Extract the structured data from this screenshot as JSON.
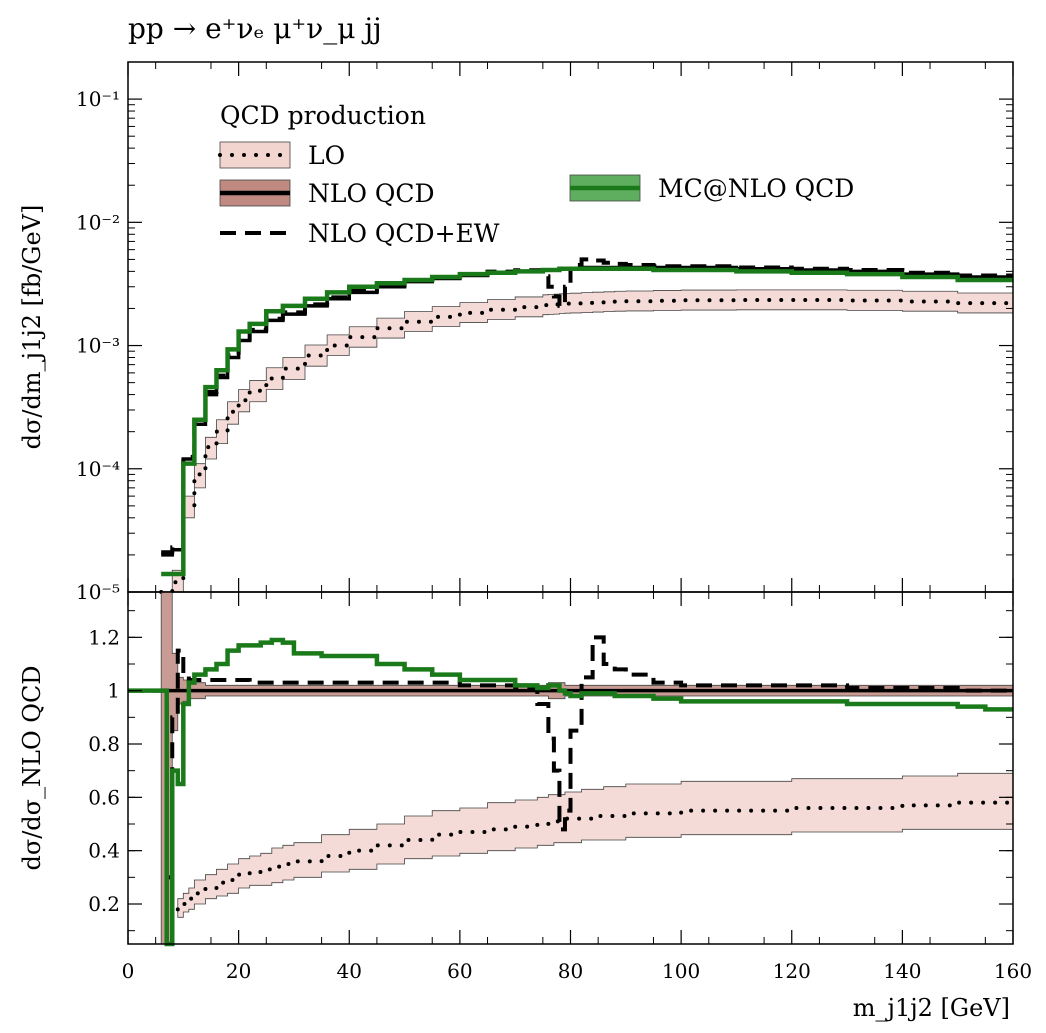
{
  "title": "pp → e⁺νₑ μ⁺ν_μ jj",
  "chart_data": [
    {
      "type": "line",
      "panel": "main",
      "ylabel": "dσ/dm_j1j2 [fb/GeV]",
      "yscale": "log",
      "xlim": [
        0,
        160
      ],
      "ylim": [
        1e-05,
        0.2
      ],
      "legend_title": "QCD production",
      "legend_position": "top-left",
      "yticks": [
        {
          "v": 1e-05,
          "label": "10⁻⁵"
        },
        {
          "v": 0.0001,
          "label": "10⁻⁴"
        },
        {
          "v": 0.001,
          "label": "10⁻³"
        },
        {
          "v": 0.01,
          "label": "10⁻²"
        },
        {
          "v": 0.1,
          "label": "10⁻¹"
        }
      ],
      "x": [
        6,
        8,
        10,
        12,
        14,
        16,
        18,
        20,
        22,
        25,
        28,
        32,
        36,
        40,
        45,
        50,
        55,
        60,
        65,
        70,
        75,
        76,
        77,
        78,
        79,
        80,
        82,
        84,
        86,
        88,
        90,
        95,
        100,
        110,
        120,
        130,
        140,
        150,
        160
      ],
      "series": [
        {
          "name": "LO",
          "style": "dotted",
          "color": "#000000",
          "band_color": "#f3d5d0",
          "values": [
            5e-06,
            1.2e-05,
            5e-05,
            9e-05,
            0.00015,
            0.0002,
            0.00029,
            0.00036,
            0.00043,
            0.00054,
            0.00065,
            0.00083,
            0.001,
            0.00117,
            0.00138,
            0.00156,
            0.00171,
            0.00184,
            0.00195,
            0.00205,
            0.00213,
            0.00215,
            0.00216,
            0.00218,
            0.00219,
            0.0022,
            0.00222,
            0.00224,
            0.00226,
            0.00228,
            0.00229,
            0.00231,
            0.00233,
            0.00234,
            0.00234,
            0.00232,
            0.00228,
            0.00221,
            0.0021
          ],
          "band_low": [
            4e-06,
            1e-05,
            4e-05,
            7e-05,
            0.00012,
            0.00016,
            0.00023,
            0.00029,
            0.00035,
            0.00044,
            0.00053,
            0.00068,
            0.00083,
            0.00097,
            0.00115,
            0.0013,
            0.00143,
            0.00154,
            0.00163,
            0.00171,
            0.00178,
            0.00179,
            0.0018,
            0.00182,
            0.00183,
            0.00184,
            0.00185,
            0.00187,
            0.00189,
            0.0019,
            0.00191,
            0.00193,
            0.00194,
            0.00195,
            0.00195,
            0.00193,
            0.0019,
            0.00184,
            0.00175
          ],
          "band_high": [
            6e-06,
            1.5e-05,
            6e-05,
            0.00011,
            0.00018,
            0.00025,
            0.00035,
            0.00044,
            0.00052,
            0.00066,
            0.0008,
            0.00101,
            0.00122,
            0.00142,
            0.00167,
            0.00189,
            0.00207,
            0.00223,
            0.00236,
            0.00248,
            0.00258,
            0.0026,
            0.00261,
            0.00263,
            0.00265,
            0.00266,
            0.00269,
            0.00271,
            0.00273,
            0.00276,
            0.00277,
            0.0028,
            0.00282,
            0.00283,
            0.00283,
            0.00281,
            0.00276,
            0.00267,
            0.00254
          ]
        },
        {
          "name": "NLO QCD",
          "style": "solid",
          "color": "#000000",
          "band_color": "#c08a82",
          "values": [
            2e-05,
            2.2e-05,
            0.00012,
            0.00023,
            0.0004,
            0.00055,
            0.0008,
            0.0011,
            0.0013,
            0.0016,
            0.0018,
            0.0021,
            0.0024,
            0.0027,
            0.003,
            0.0033,
            0.0035,
            0.0037,
            0.0039,
            0.004,
            0.0041,
            0.0041,
            0.0041,
            0.0042,
            0.0042,
            0.0042,
            0.0043,
            0.0043,
            0.0043,
            0.0043,
            0.0043,
            0.0043,
            0.0043,
            0.0042,
            0.0041,
            0.004,
            0.0038,
            0.0036,
            0.0034
          ]
        },
        {
          "name": "NLO QCD+EW",
          "style": "dashed",
          "color": "#000000",
          "values": [
            2.1e-05,
            2.3e-05,
            0.000125,
            0.00024,
            0.00042,
            0.00057,
            0.00083,
            0.00113,
            0.00134,
            0.00165,
            0.00186,
            0.00216,
            0.00246,
            0.00277,
            0.00307,
            0.00337,
            0.00357,
            0.00378,
            0.00398,
            0.00408,
            0.00365,
            0.003,
            0.0025,
            0.0021,
            0.003,
            0.0045,
            0.005,
            0.0049,
            0.0047,
            0.0046,
            0.0045,
            0.0044,
            0.0044,
            0.0043,
            0.0042,
            0.0041,
            0.0039,
            0.0037,
            0.0035
          ]
        },
        {
          "name": "MC@NLO QCD",
          "style": "solid",
          "color": "#1a7a1a",
          "band_color": "#5fae5f",
          "values": [
            1.4e-05,
            1.4e-05,
            0.00011,
            0.00025,
            0.00046,
            0.00063,
            0.00093,
            0.0013,
            0.0015,
            0.0019,
            0.0021,
            0.0024,
            0.0027,
            0.003,
            0.0032,
            0.0034,
            0.0036,
            0.0038,
            0.0039,
            0.004,
            0.0041,
            0.0041,
            0.0041,
            0.0042,
            0.0042,
            0.0042,
            0.0042,
            0.0042,
            0.0042,
            0.0042,
            0.0042,
            0.0041,
            0.0041,
            0.004,
            0.0039,
            0.0038,
            0.0036,
            0.0034,
            0.0032
          ]
        }
      ]
    },
    {
      "type": "line",
      "panel": "ratio",
      "ylabel": "dσ/dσ_NLO QCD",
      "xlabel": "m_j1j2 [GeV]",
      "xlim": [
        0,
        160
      ],
      "ylim": [
        0.05,
        1.37
      ],
      "yticks": [
        {
          "v": 0.2,
          "label": "0.2"
        },
        {
          "v": 0.4,
          "label": "0.4"
        },
        {
          "v": 0.6,
          "label": "0.6"
        },
        {
          "v": 0.8,
          "label": "0.8"
        },
        {
          "v": 1.0,
          "label": "1"
        },
        {
          "v": 1.2,
          "label": "1.2"
        }
      ],
      "xticks": [
        {
          "v": 0,
          "label": "0"
        },
        {
          "v": 20,
          "label": "20"
        },
        {
          "v": 40,
          "label": "40"
        },
        {
          "v": 60,
          "label": "60"
        },
        {
          "v": 80,
          "label": "80"
        },
        {
          "v": 100,
          "label": "100"
        },
        {
          "v": 120,
          "label": "120"
        },
        {
          "v": 140,
          "label": "140"
        },
        {
          "v": 160,
          "label": "160"
        }
      ],
      "x": [
        0,
        6,
        7,
        8,
        9,
        10,
        11,
        12,
        14,
        16,
        18,
        20,
        22,
        24,
        26,
        28,
        30,
        35,
        40,
        45,
        50,
        55,
        60,
        65,
        70,
        74,
        76,
        77,
        78,
        79,
        80,
        82,
        84,
        86,
        88,
        90,
        95,
        100,
        110,
        120,
        130,
        140,
        150,
        155,
        160
      ],
      "series": [
        {
          "name": "LO",
          "style": "dotted",
          "color": "#000000",
          "band_color": "#f3d5d0",
          "values": [
            null,
            null,
            null,
            null,
            0.18,
            0.2,
            0.22,
            0.24,
            0.26,
            0.28,
            0.29,
            0.31,
            0.32,
            0.33,
            0.34,
            0.35,
            0.36,
            0.38,
            0.4,
            0.42,
            0.44,
            0.46,
            0.47,
            0.48,
            0.49,
            0.5,
            0.51,
            0.51,
            0.51,
            0.52,
            0.52,
            0.52,
            0.53,
            0.53,
            0.53,
            0.54,
            0.54,
            0.55,
            0.55,
            0.56,
            0.56,
            0.57,
            0.58,
            0.58,
            0.58
          ],
          "band_low": [
            null,
            null,
            null,
            null,
            0.15,
            0.17,
            0.18,
            0.2,
            0.22,
            0.23,
            0.24,
            0.26,
            0.27,
            0.27,
            0.28,
            0.29,
            0.3,
            0.32,
            0.33,
            0.35,
            0.37,
            0.38,
            0.39,
            0.4,
            0.41,
            0.42,
            0.42,
            0.43,
            0.43,
            0.43,
            0.43,
            0.44,
            0.44,
            0.44,
            0.44,
            0.45,
            0.45,
            0.46,
            0.46,
            0.47,
            0.47,
            0.48,
            0.48,
            0.48,
            0.49
          ],
          "band_high": [
            null,
            null,
            null,
            null,
            0.22,
            0.24,
            0.26,
            0.29,
            0.31,
            0.33,
            0.35,
            0.37,
            0.38,
            0.39,
            0.41,
            0.42,
            0.43,
            0.46,
            0.48,
            0.5,
            0.53,
            0.55,
            0.56,
            0.58,
            0.59,
            0.6,
            0.61,
            0.61,
            0.61,
            0.62,
            0.62,
            0.63,
            0.63,
            0.64,
            0.64,
            0.65,
            0.65,
            0.66,
            0.66,
            0.67,
            0.67,
            0.68,
            0.69,
            0.69,
            0.7
          ]
        },
        {
          "name": "NLO QCD",
          "style": "solid",
          "color": "#000000",
          "band_color": "#c08a82",
          "values": [
            1.0,
            1.0,
            1.0,
            1.0,
            1.0,
            1.0,
            1.0,
            1.0,
            1.0,
            1.0,
            1.0,
            1.0,
            1.0,
            1.0,
            1.0,
            1.0,
            1.0,
            1.0,
            1.0,
            1.0,
            1.0,
            1.0,
            1.0,
            1.0,
            1.0,
            1.0,
            1.0,
            1.0,
            1.0,
            1.0,
            1.0,
            1.0,
            1.0,
            1.0,
            1.0,
            1.0,
            1.0,
            1.0,
            1.0,
            1.0,
            1.0,
            1.0,
            1.0,
            1.0,
            1.0
          ],
          "band_low": [
            1.0,
            0.05,
            0.05,
            0.85,
            0.95,
            0.96,
            0.97,
            0.97,
            0.98,
            0.98,
            0.98,
            0.98,
            0.98,
            0.98,
            0.98,
            0.98,
            0.98,
            0.98,
            0.98,
            0.98,
            0.98,
            0.98,
            0.98,
            0.98,
            0.98,
            0.98,
            0.97,
            0.97,
            0.97,
            0.98,
            0.98,
            0.98,
            0.98,
            0.98,
            0.98,
            0.98,
            0.98,
            0.98,
            0.98,
            0.98,
            0.98,
            0.98,
            0.98,
            0.98,
            0.98
          ],
          "band_high": [
            1.0,
            1.37,
            1.37,
            1.14,
            1.05,
            1.04,
            1.03,
            1.03,
            1.02,
            1.02,
            1.02,
            1.02,
            1.02,
            1.02,
            1.02,
            1.02,
            1.02,
            1.02,
            1.02,
            1.02,
            1.02,
            1.02,
            1.02,
            1.02,
            1.02,
            1.02,
            1.03,
            1.03,
            1.03,
            1.02,
            1.02,
            1.02,
            1.02,
            1.02,
            1.02,
            1.02,
            1.02,
            1.02,
            1.02,
            1.02,
            1.02,
            1.02,
            1.02,
            1.02,
            1.02
          ]
        },
        {
          "name": "NLO QCD+EW",
          "style": "dashed",
          "color": "#000000",
          "values": [
            1.0,
            1.0,
            0.3,
            0.9,
            1.15,
            1.06,
            1.04,
            1.04,
            1.04,
            1.04,
            1.04,
            1.04,
            1.03,
            1.03,
            1.03,
            1.03,
            1.03,
            1.03,
            1.03,
            1.03,
            1.03,
            1.03,
            1.02,
            1.02,
            1.01,
            0.95,
            0.82,
            0.7,
            0.48,
            0.55,
            0.85,
            1.05,
            1.2,
            1.1,
            1.08,
            1.06,
            1.03,
            1.02,
            1.02,
            1.02,
            1.01,
            1.01,
            1.0,
            1.0,
            1.0
          ]
        },
        {
          "name": "MC@NLO QCD",
          "style": "solid",
          "color": "#1a7a1a",
          "band_color": "#5fae5f",
          "values": [
            1.0,
            1.0,
            0.05,
            0.7,
            0.65,
            0.95,
            1.03,
            1.06,
            1.08,
            1.1,
            1.15,
            1.17,
            1.17,
            1.18,
            1.19,
            1.18,
            1.14,
            1.13,
            1.13,
            1.1,
            1.08,
            1.06,
            1.04,
            1.04,
            1.02,
            1.01,
            1.02,
            1.02,
            1.0,
            0.99,
            0.98,
            0.99,
            0.99,
            0.99,
            0.98,
            0.98,
            0.97,
            0.96,
            0.96,
            0.96,
            0.95,
            0.95,
            0.94,
            0.93,
            0.93
          ]
        }
      ]
    }
  ]
}
